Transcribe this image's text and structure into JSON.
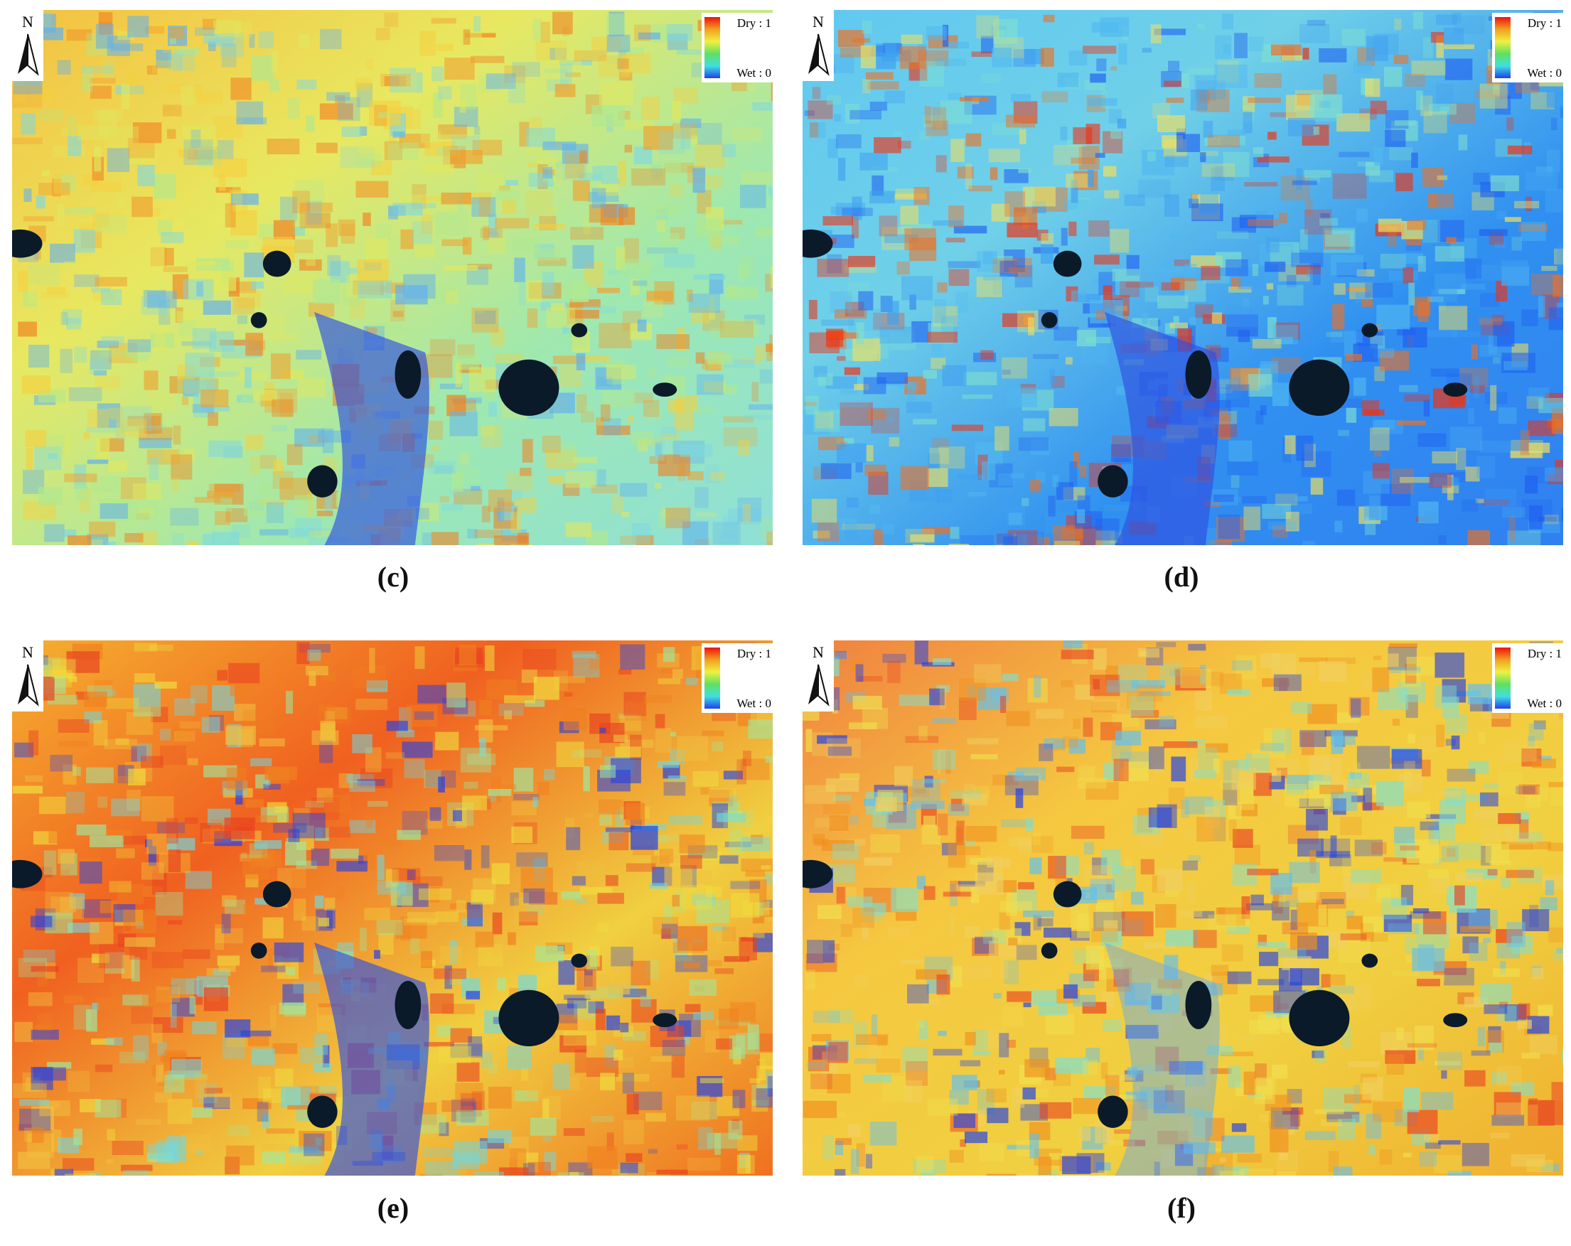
{
  "panels": [
    {
      "label": "(c)",
      "north": "N",
      "legend_top": "Dry : 1",
      "legend_bottom": "Wet : 0"
    },
    {
      "label": "(d)",
      "north": "N",
      "legend_top": "Dry : 1",
      "legend_bottom": "Wet : 0"
    },
    {
      "label": "(e)",
      "north": "N",
      "legend_top": "Dry : 1",
      "legend_bottom": "Wet : 0"
    },
    {
      "label": "(f)",
      "north": "N",
      "legend_top": "Dry : 1",
      "legend_bottom": "Wet : 0"
    }
  ]
}
